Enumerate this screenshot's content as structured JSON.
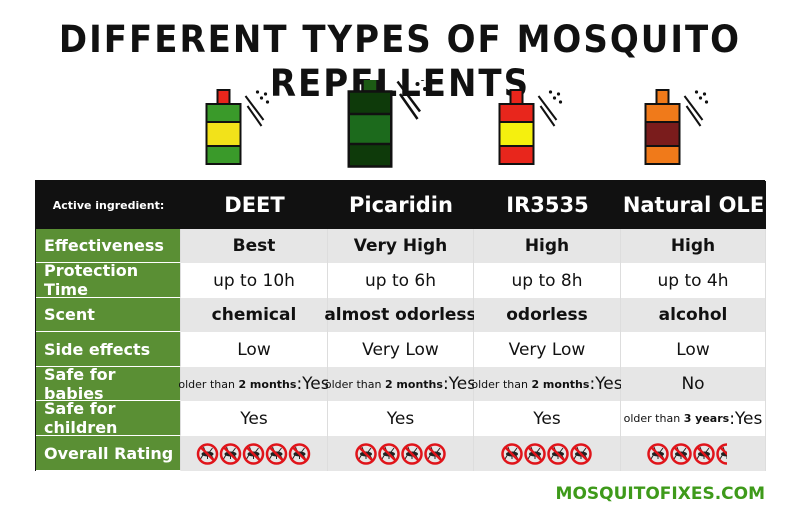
{
  "title": "DIFFERENT TYPES OF MOSQUITO REPELLENTS",
  "header_label": "Active ingredient:",
  "products": [
    {
      "name": "DEET",
      "cap": "#e8261c",
      "body": "#3a9a2a",
      "label": "#f2e21a"
    },
    {
      "name": "Picaridin",
      "cap": "#1c5a14",
      "body": "#0e3a0a",
      "label": "#1c6a1c"
    },
    {
      "name": "IR3535",
      "cap": "#e8261c",
      "body": "#e8261c",
      "label": "#f5f00e"
    },
    {
      "name": "Natural OLE",
      "cap": "#f07a1a",
      "body": "#f07a1a",
      "label": "#7a1c1c"
    }
  ],
  "bottle_order": [
    0,
    1,
    2,
    3
  ],
  "rows": [
    {
      "label": "Effectiveness",
      "bold": true,
      "cells": [
        "Best",
        "Very High",
        "High",
        "High"
      ]
    },
    {
      "label": "Protection Time",
      "bold": false,
      "cells": [
        "up to 10h",
        "up to 6h",
        "up to 8h",
        "up to 4h"
      ]
    },
    {
      "label": "Scent",
      "bold": true,
      "cells": [
        "chemical",
        "almost odorless",
        "odorless",
        "alcohol"
      ]
    },
    {
      "label": "Side effects",
      "bold": false,
      "cells": [
        "Low",
        "Very Low",
        "Very Low",
        "Low"
      ]
    },
    {
      "label": "Safe for babies",
      "bold": false,
      "cells": [
        {
          "note": "older than ",
          "bold": "2 months",
          "answer": ":Yes"
        },
        {
          "note": "older than ",
          "bold": "2 months",
          "answer": ":Yes"
        },
        {
          "note": "older than ",
          "bold": "2 months",
          "answer": ":Yes"
        },
        "No"
      ]
    },
    {
      "label": "Safe for children",
      "bold": false,
      "cells": [
        "Yes",
        "Yes",
        "Yes",
        {
          "note": "older than ",
          "bold": "3 years",
          "answer": ":Yes"
        }
      ]
    }
  ],
  "rating_label": "Overall Rating",
  "ratings": [
    5,
    4,
    4,
    3.5
  ],
  "footer": "MOSQUITOFIXES.COM"
}
